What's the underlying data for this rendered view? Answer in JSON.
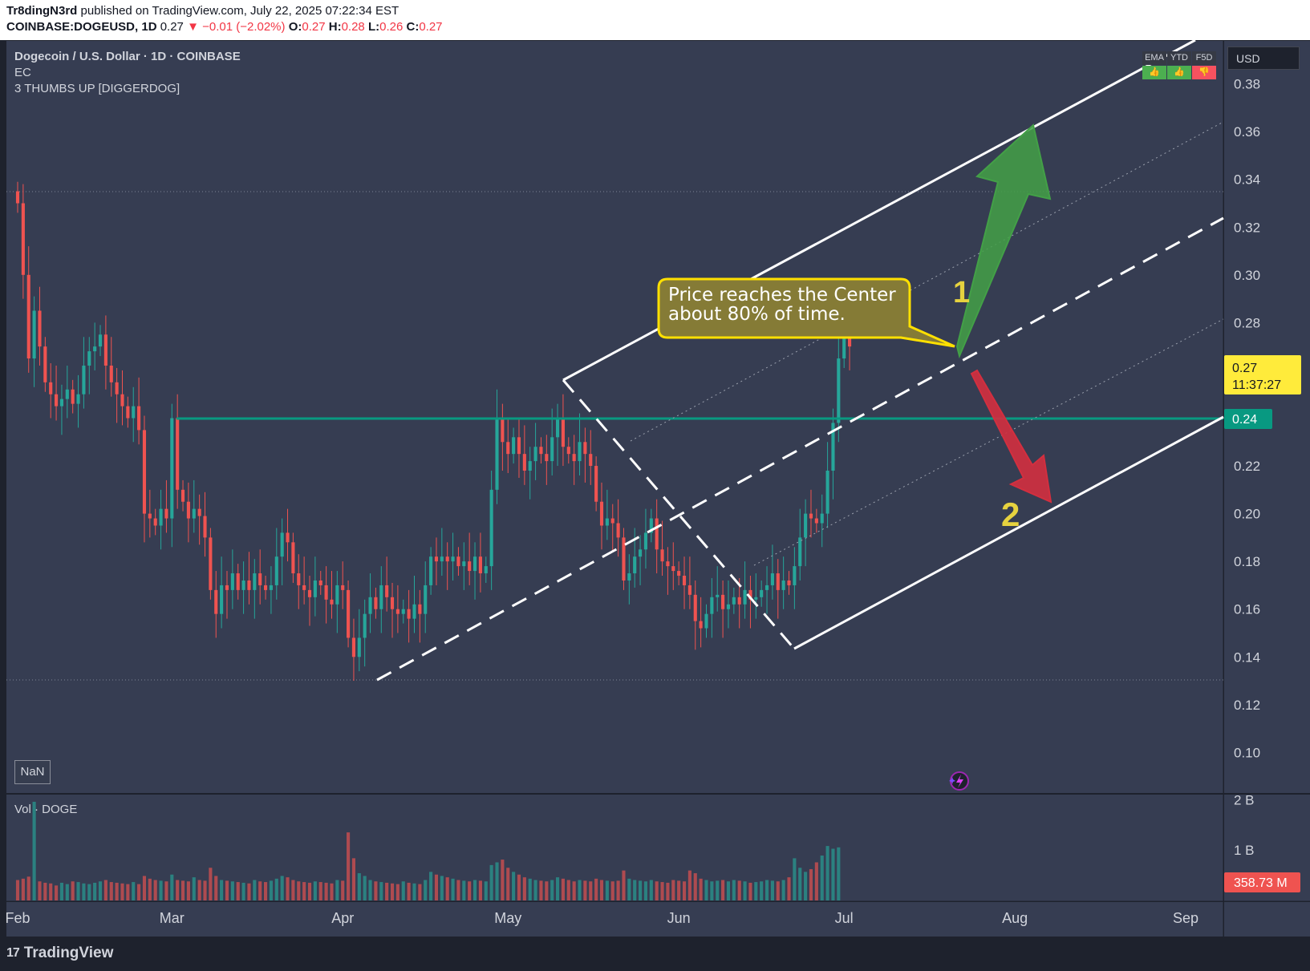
{
  "header": {
    "author": "Tr8dingN3rd",
    "published_text": "published on TradingView.com, July 22, 2025 07:22:34 EST",
    "symbol": "COINBASE:DOGEUSD, 1D",
    "last": "0.27",
    "change": "−0.01 (−2.02%)",
    "o_label": "O:",
    "o_val": "0.27",
    "h_label": "H:",
    "h_val": "0.28",
    "l_label": "L:",
    "l_val": "0.26",
    "c_label": "C:",
    "c_val": "0.27"
  },
  "legend": {
    "title": "Dogecoin / U.S. Dollar · 1D · COINBASE",
    "ind1": "EC",
    "ind2": "3 THUMBS UP [DIGGERDOG]",
    "volume": "Vol · DOGE",
    "nan": "NaN"
  },
  "indicator_table": {
    "headers": [
      "EMA",
      "YTD",
      "F5D"
    ],
    "cells": [
      {
        "glyph": "👍",
        "color": "#4caf50"
      },
      {
        "glyph": "👍",
        "color": "#4caf50"
      },
      {
        "glyph": "👎",
        "color": "#f7525f"
      }
    ]
  },
  "currency": "USD",
  "annotation": {
    "callout": "Price reaches the Center about 80% of time.",
    "label1": "1",
    "label2": "2"
  },
  "price_tags": {
    "last": "0.27",
    "countdown": "11:37:27",
    "level": "0.24",
    "volume": "358.73 M"
  },
  "branding": "TradingView",
  "colors": {
    "up": "#26a69a",
    "down": "#ef5350",
    "level_line": "#089981",
    "channel": "#ffffff",
    "arrow_up": "#43a047",
    "arrow_down": "#d32f3f",
    "callout_fill": "#857b36",
    "callout_border": "#ffe000",
    "label_yellow": "#e6d23f"
  },
  "chart_data": {
    "type": "candlestick",
    "title": "Dogecoin / U.S. Dollar · 1D · COINBASE",
    "x_ticks": [
      "Feb",
      "Mar",
      "Apr",
      "May",
      "Jun",
      "Jul",
      "Aug",
      "Sep"
    ],
    "x_tick_dates": [
      "2025-02-01",
      "2025-03-01",
      "2025-04-01",
      "2025-05-01",
      "2025-06-01",
      "2025-07-01",
      "2025-08-01",
      "2025-09-01"
    ],
    "y_ticks": [
      0.38,
      0.36,
      0.34,
      0.32,
      0.3,
      0.28,
      0.27,
      0.24,
      0.22,
      0.2,
      0.18,
      0.16,
      0.14,
      0.12,
      0.1
    ],
    "ylim": [
      0.083,
      0.398
    ],
    "volume_ticks": [
      "2 B",
      "1 B"
    ],
    "volume_tick_values": [
      2000000000,
      1000000000
    ],
    "volume_ylim": [
      0,
      2100000000
    ],
    "start_date": "2025-02-01",
    "closes": [
      0.33,
      0.3,
      0.265,
      0.285,
      0.27,
      0.255,
      0.25,
      0.245,
      0.248,
      0.252,
      0.246,
      0.25,
      0.262,
      0.268,
      0.27,
      0.275,
      0.262,
      0.255,
      0.25,
      0.245,
      0.24,
      0.245,
      0.235,
      0.2,
      0.198,
      0.195,
      0.202,
      0.198,
      0.24,
      0.21,
      0.205,
      0.198,
      0.202,
      0.199,
      0.19,
      0.168,
      0.158,
      0.17,
      0.168,
      0.175,
      0.168,
      0.172,
      0.168,
      0.175,
      0.17,
      0.168,
      0.17,
      0.182,
      0.192,
      0.188,
      0.175,
      0.17,
      0.168,
      0.165,
      0.172,
      0.17,
      0.164,
      0.162,
      0.17,
      0.168,
      0.148,
      0.14,
      0.148,
      0.158,
      0.165,
      0.16,
      0.17,
      0.165,
      0.16,
      0.158,
      0.16,
      0.156,
      0.162,
      0.158,
      0.17,
      0.182,
      0.18,
      0.182,
      0.18,
      0.182,
      0.178,
      0.18,
      0.176,
      0.182,
      0.175,
      0.178,
      0.21,
      0.24,
      0.23,
      0.225,
      0.232,
      0.225,
      0.218,
      0.222,
      0.228,
      0.225,
      0.222,
      0.232,
      0.24,
      0.228,
      0.225,
      0.222,
      0.23,
      0.225,
      0.22,
      0.205,
      0.195,
      0.198,
      0.196,
      0.19,
      0.172,
      0.175,
      0.182,
      0.185,
      0.192,
      0.198,
      0.185,
      0.18,
      0.178,
      0.176,
      0.174,
      0.17,
      0.166,
      0.155,
      0.152,
      0.158,
      0.165,
      0.166,
      0.16,
      0.162,
      0.165,
      0.162,
      0.168,
      0.164,
      0.165,
      0.168,
      0.17,
      0.175,
      0.168,
      0.172,
      0.17,
      0.178,
      0.19,
      0.2,
      0.198,
      0.196,
      0.2,
      0.218,
      0.238,
      0.265,
      0.275,
      0.27
    ],
    "volumes": [
      300,
      320,
      350,
      1450,
      280,
      260,
      250,
      220,
      260,
      240,
      280,
      270,
      250,
      240,
      260,
      280,
      300,
      270,
      260,
      250,
      240,
      270,
      240,
      360,
      320,
      300,
      290,
      280,
      380,
      300,
      290,
      280,
      340,
      300,
      290,
      480,
      360,
      300,
      290,
      280,
      270,
      260,
      250,
      300,
      280,
      270,
      290,
      320,
      360,
      340,
      300,
      280,
      270,
      260,
      280,
      270,
      260,
      250,
      300,
      290,
      1000,
      620,
      400,
      360,
      300,
      280,
      270,
      260,
      250,
      240,
      280,
      260,
      250,
      240,
      300,
      420,
      380,
      360,
      340,
      320,
      300,
      290,
      280,
      300,
      290,
      280,
      520,
      560,
      600,
      480,
      420,
      380,
      340,
      320,
      300,
      290,
      280,
      300,
      340,
      320,
      300,
      280,
      300,
      290,
      280,
      320,
      300,
      290,
      280,
      290,
      440,
      320,
      300,
      290,
      280,
      300,
      280,
      270,
      260,
      300,
      290,
      280,
      440,
      400,
      320,
      300,
      280,
      290,
      300,
      280,
      300,
      290,
      280,
      260,
      270,
      280,
      300,
      290,
      280,
      300,
      340,
      620,
      480,
      420,
      460,
      560,
      660,
      800,
      760,
      780
    ]
  }
}
